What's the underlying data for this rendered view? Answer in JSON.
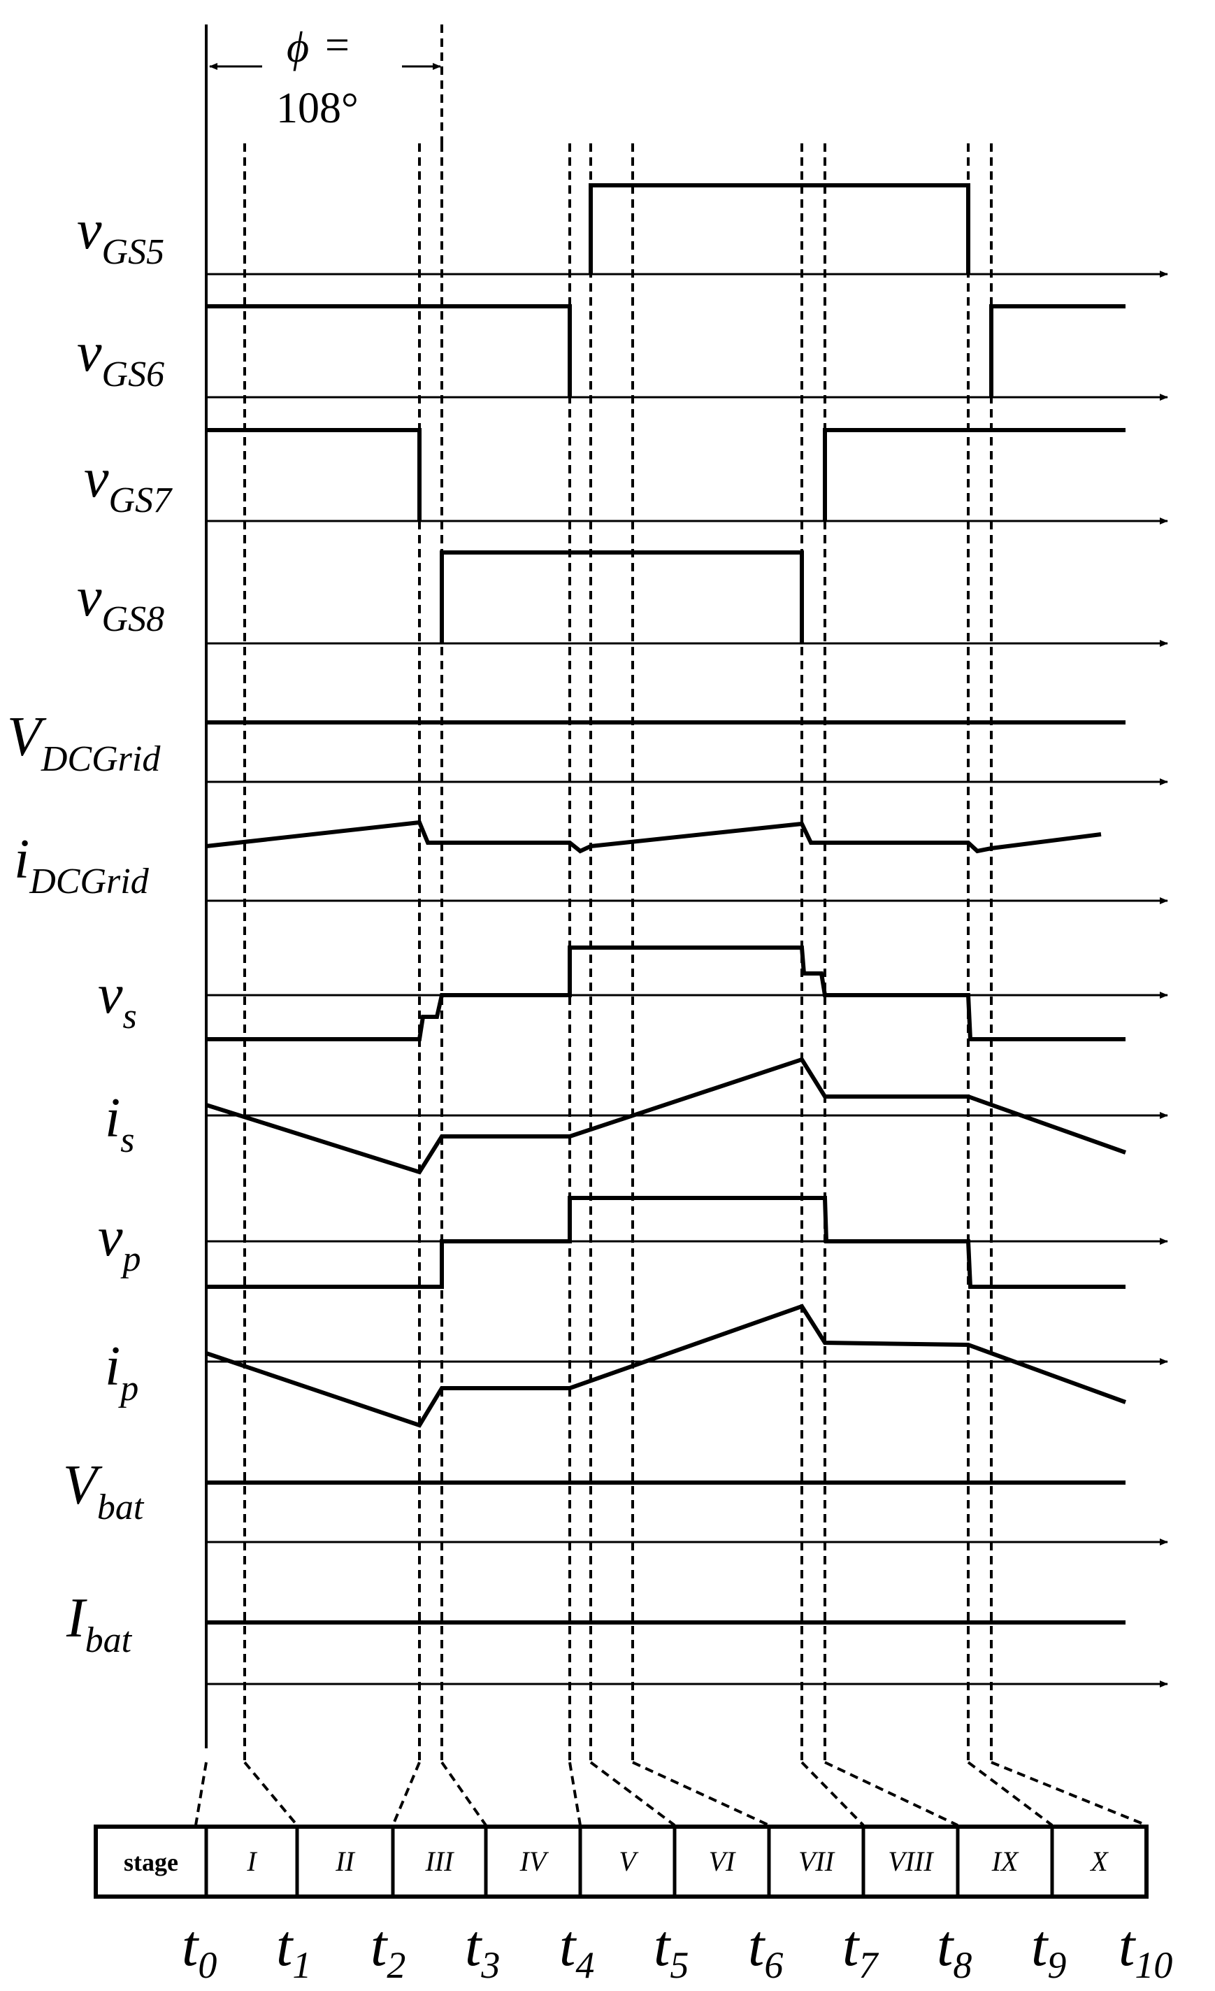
{
  "phase": {
    "symbol": "ϕ",
    "equals": "=",
    "value": "108°"
  },
  "signals": [
    {
      "key": "vgs5",
      "main": "v",
      "sub": "GS5"
    },
    {
      "key": "vgs6",
      "main": "v",
      "sub": "GS6"
    },
    {
      "key": "vgs7",
      "main": "v",
      "sub": "GS7"
    },
    {
      "key": "vgs8",
      "main": "v",
      "sub": "GS8"
    },
    {
      "key": "vdcgrid",
      "main": "V",
      "sub": "DCGrid"
    },
    {
      "key": "idcgrid",
      "main": "i",
      "sub": "DCGrid"
    },
    {
      "key": "vs",
      "main": "v",
      "sub": "s"
    },
    {
      "key": "is",
      "main": "i",
      "sub": "s"
    },
    {
      "key": "vp",
      "main": "v",
      "sub": "p"
    },
    {
      "key": "ip",
      "main": "i",
      "sub": "p"
    },
    {
      "key": "vbat",
      "main": "V",
      "sub": "bat"
    },
    {
      "key": "ibat",
      "main": "I",
      "sub": "bat"
    }
  ],
  "stage_table": {
    "header": "stage",
    "stages": [
      "I",
      "II",
      "III",
      "IV",
      "V",
      "VI",
      "VII",
      "VIII",
      "IX",
      "X"
    ]
  },
  "time_labels": [
    {
      "main": "t",
      "sub": "0"
    },
    {
      "main": "t",
      "sub": "1"
    },
    {
      "main": "t",
      "sub": "2"
    },
    {
      "main": "t",
      "sub": "3"
    },
    {
      "main": "t",
      "sub": "4"
    },
    {
      "main": "t",
      "sub": "5"
    },
    {
      "main": "t",
      "sub": "6"
    },
    {
      "main": "t",
      "sub": "7"
    },
    {
      "main": "t",
      "sub": "8"
    },
    {
      "main": "t",
      "sub": "9"
    },
    {
      "main": "t",
      "sub": "10"
    }
  ]
}
